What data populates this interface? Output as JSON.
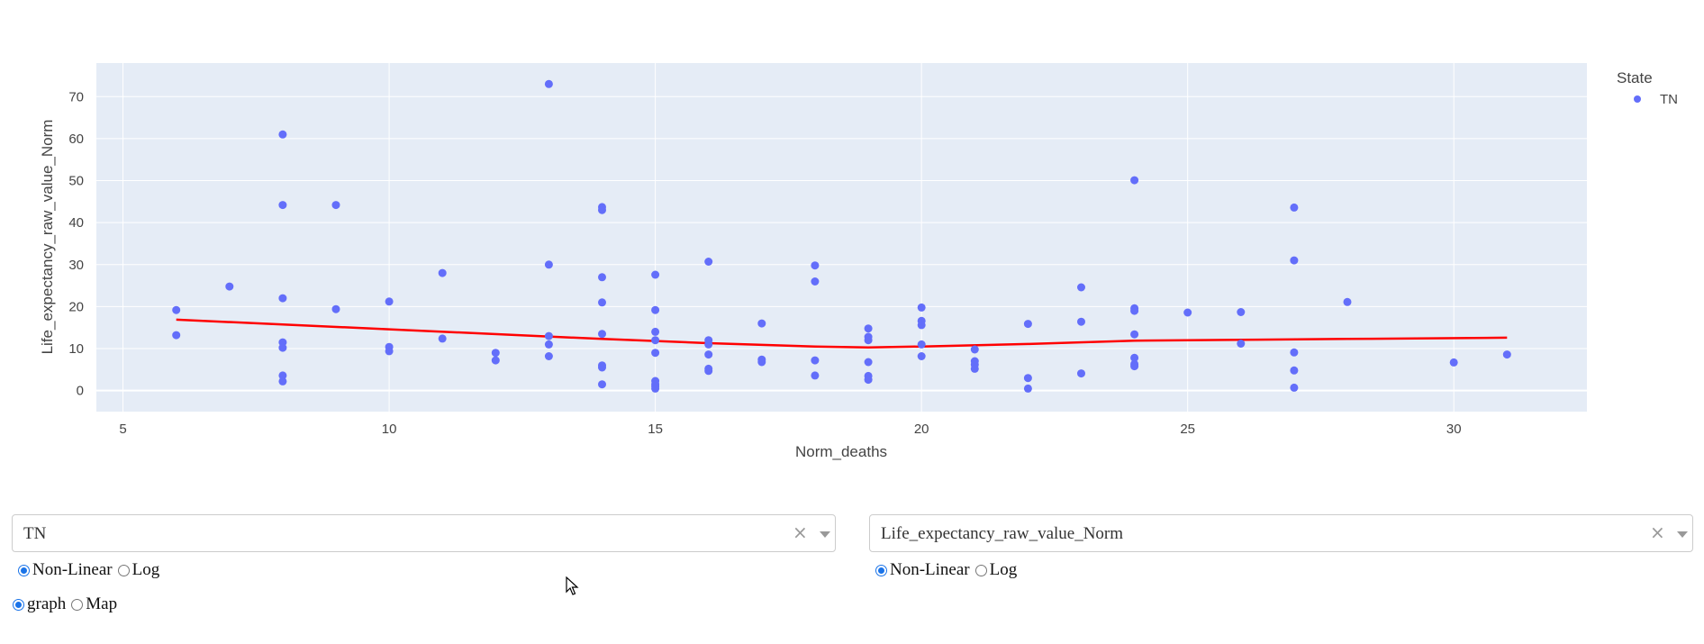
{
  "chart_data": {
    "type": "scatter",
    "xlabel": "Norm_deaths",
    "ylabel": "Life_expectancy_raw_value_Norm",
    "xlim": [
      4.5,
      32.5
    ],
    "ylim": [
      -5,
      78
    ],
    "xticks": [
      5,
      10,
      15,
      20,
      25,
      30
    ],
    "yticks": [
      0,
      10,
      20,
      30,
      40,
      50,
      60,
      70
    ],
    "grid": true,
    "legend": {
      "title": "State",
      "placement": "top-right"
    },
    "series": [
      {
        "name": "TN",
        "color": "#636efa",
        "points": [
          [
            6,
            19.2
          ],
          [
            6,
            13.2
          ],
          [
            7,
            24.8
          ],
          [
            8,
            61
          ],
          [
            8,
            44.2
          ],
          [
            8,
            22
          ],
          [
            8,
            11.5
          ],
          [
            8,
            10.2
          ],
          [
            8,
            3.6
          ],
          [
            8,
            2.2
          ],
          [
            9,
            44.2
          ],
          [
            9,
            19.4
          ],
          [
            10,
            21.2
          ],
          [
            10,
            10.4
          ],
          [
            10,
            9.4
          ],
          [
            11,
            28
          ],
          [
            11,
            12.4
          ],
          [
            12,
            9
          ],
          [
            12,
            7.2
          ],
          [
            13,
            73
          ],
          [
            13,
            30
          ],
          [
            13,
            13
          ],
          [
            13,
            11
          ],
          [
            13,
            8.2
          ],
          [
            14,
            43.7
          ],
          [
            14,
            43
          ],
          [
            14,
            27
          ],
          [
            14,
            21
          ],
          [
            14,
            13.5
          ],
          [
            14,
            6
          ],
          [
            14,
            5.5
          ],
          [
            14,
            1.5
          ],
          [
            15,
            27.6
          ],
          [
            15,
            19.2
          ],
          [
            15,
            14
          ],
          [
            15,
            12
          ],
          [
            15,
            9
          ],
          [
            15,
            2.3
          ],
          [
            15,
            1.5
          ],
          [
            15,
            1
          ],
          [
            15,
            0.5
          ],
          [
            16,
            30.7
          ],
          [
            16,
            12
          ],
          [
            16,
            11
          ],
          [
            16,
            8.6
          ],
          [
            16,
            5.2
          ],
          [
            16,
            4.7
          ],
          [
            17,
            16
          ],
          [
            17,
            7.4
          ],
          [
            17,
            6.8
          ],
          [
            18,
            29.8
          ],
          [
            18,
            26
          ],
          [
            18,
            7.2
          ],
          [
            18,
            3.6
          ],
          [
            19,
            14.8
          ],
          [
            19,
            12.8
          ],
          [
            19,
            12
          ],
          [
            19,
            6.8
          ],
          [
            19,
            3.5
          ],
          [
            19,
            2.6
          ],
          [
            20,
            19.8
          ],
          [
            20,
            16.6
          ],
          [
            20,
            15.6
          ],
          [
            20,
            11
          ],
          [
            20,
            8.2
          ],
          [
            21,
            9.8
          ],
          [
            21,
            7
          ],
          [
            21,
            6.2
          ],
          [
            21,
            5.2
          ],
          [
            22,
            15.9
          ],
          [
            22,
            3
          ],
          [
            22,
            0.5
          ],
          [
            23,
            24.6
          ],
          [
            23,
            16.4
          ],
          [
            23,
            4.1
          ],
          [
            24,
            50.1
          ],
          [
            24,
            19.6
          ],
          [
            24,
            19
          ],
          [
            24,
            13.4
          ],
          [
            24,
            7.8
          ],
          [
            24,
            6.3
          ],
          [
            24,
            5.8
          ],
          [
            25,
            18.6
          ],
          [
            26,
            18.7
          ],
          [
            26,
            11.2
          ],
          [
            27,
            43.6
          ],
          [
            27,
            31
          ],
          [
            27,
            9.1
          ],
          [
            27,
            4.8
          ],
          [
            27,
            0.7
          ],
          [
            28,
            21.1
          ],
          [
            30,
            6.7
          ],
          [
            31,
            8.6
          ]
        ]
      },
      {
        "type": "line",
        "color": "#ff0000",
        "points": [
          [
            6,
            16.9
          ],
          [
            10,
            14.6
          ],
          [
            14,
            12.3
          ],
          [
            16,
            11.3
          ],
          [
            18,
            10.5
          ],
          [
            19,
            10.3
          ],
          [
            20,
            10.5
          ],
          [
            22,
            11.1
          ],
          [
            24,
            11.9
          ],
          [
            26,
            12.1
          ],
          [
            28,
            12.3
          ],
          [
            31,
            12.6
          ]
        ]
      }
    ]
  },
  "controls": {
    "left_dropdown": {
      "value": "TN",
      "clear_icon": "×"
    },
    "right_dropdown": {
      "value": "Life_expectancy_raw_value_Norm",
      "clear_icon": "×"
    },
    "left_scale": {
      "options": [
        "Non-Linear",
        "Log"
      ],
      "selected": "Non-Linear"
    },
    "right_scale": {
      "options": [
        "Non-Linear",
        "Log"
      ],
      "selected": "Non-Linear"
    },
    "view_mode": {
      "options": [
        "graph",
        "Map"
      ],
      "selected": "graph"
    }
  }
}
